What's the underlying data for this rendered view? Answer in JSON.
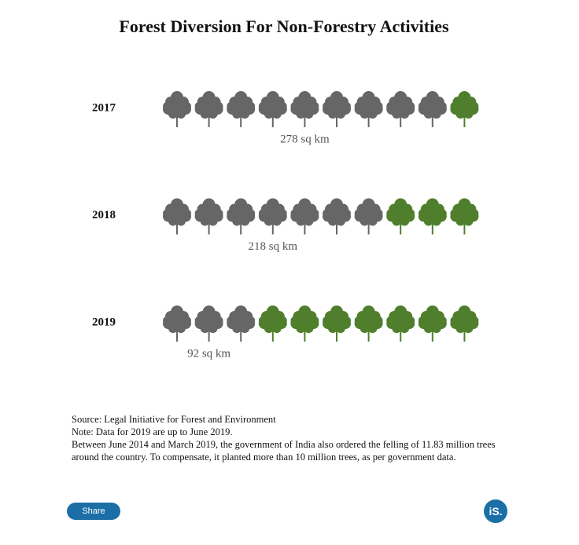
{
  "chart_data": {
    "type": "pictograph",
    "title": "Forest Diversion For Non-Forestry Activities",
    "categories": [
      "2017",
      "2018",
      "2019"
    ],
    "values": [
      278,
      218,
      92
    ],
    "value_labels": [
      "278 sq km",
      "218 sq km",
      "92 sq km"
    ],
    "icons_total": 10,
    "icons_filled": [
      9,
      7,
      3
    ],
    "color": "#666666",
    "rest_color": "#4f7f2c"
  },
  "footer": {
    "notes": [
      "Source: Legal Initiative for Forest and Environment",
      "Note: Data for 2019 are up to June 2019.",
      "Between June 2014 and March 2019, the government of India also ordered the felling of 11.83 million trees around the country. To compensate, it planted more than 10 million trees, as per government data."
    ],
    "share": "Share",
    "logo": "iS."
  }
}
